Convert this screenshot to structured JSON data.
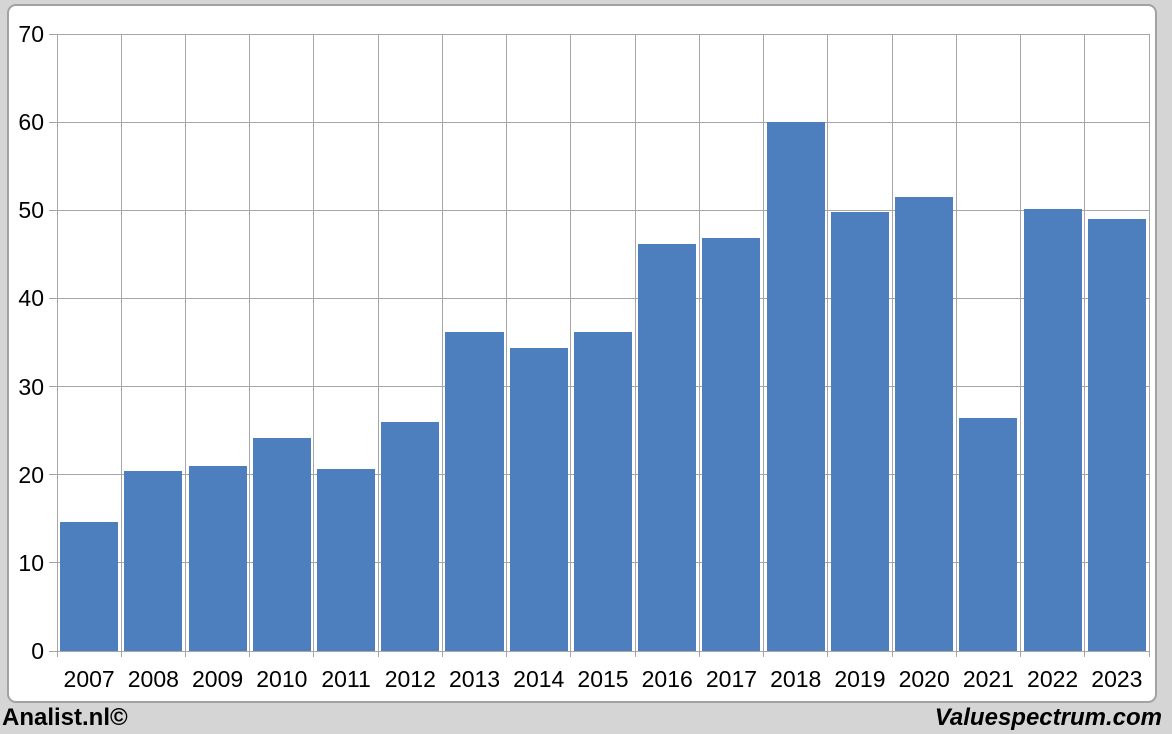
{
  "chart_data": {
    "type": "bar",
    "title": "",
    "xlabel": "",
    "ylabel": "",
    "categories": [
      "2007",
      "2008",
      "2009",
      "2010",
      "2011",
      "2012",
      "2013",
      "2014",
      "2015",
      "2016",
      "2017",
      "2018",
      "2019",
      "2020",
      "2021",
      "2022",
      "2023"
    ],
    "values": [
      14.6,
      20.4,
      21.0,
      24.2,
      20.7,
      26.0,
      36.2,
      34.4,
      36.2,
      46.2,
      46.9,
      60.0,
      49.8,
      51.5,
      26.4,
      50.2,
      49.0
    ],
    "ylim": [
      0,
      70
    ],
    "yticks": [
      0,
      10,
      20,
      30,
      40,
      50,
      60,
      70
    ],
    "grid": true,
    "legend": "none",
    "bar_color": "#4d7ebd",
    "gridline_color": "#a6a6a6",
    "plot_background": "#ffffff",
    "frame_background": "#d5d5d5",
    "text_color": "#000000"
  },
  "footer": {
    "left_brand": "Analist.nl©",
    "right_brand": "Valuespectrum.com"
  }
}
